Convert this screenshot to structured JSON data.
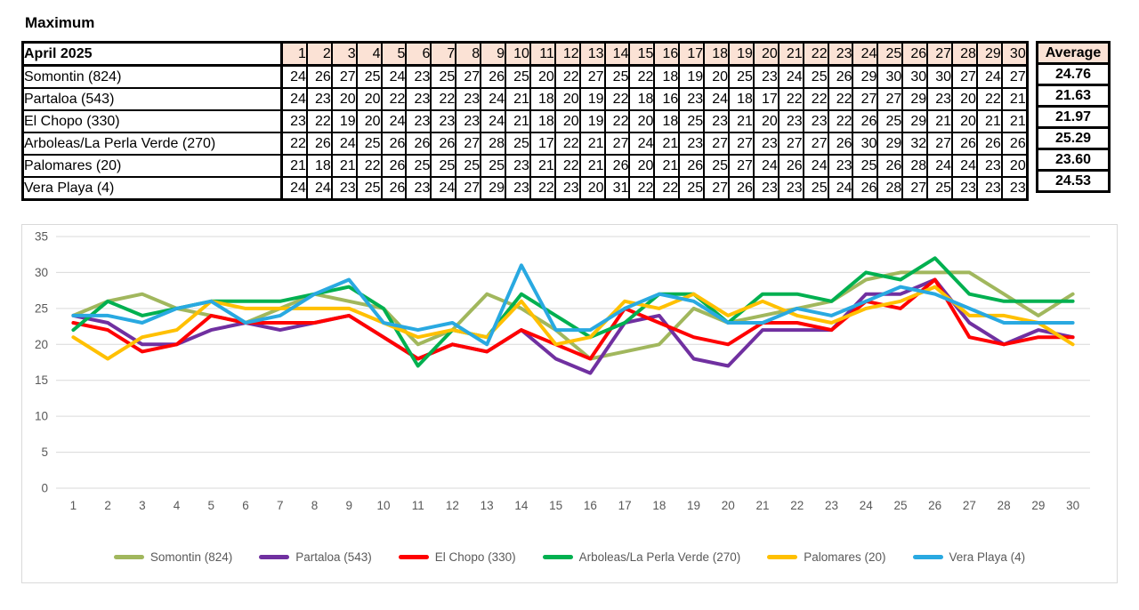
{
  "title": "Maximum",
  "table": {
    "month_label": "April 2025",
    "average_header": "Average",
    "days": [
      1,
      2,
      3,
      4,
      5,
      6,
      7,
      8,
      9,
      10,
      11,
      12,
      13,
      14,
      15,
      16,
      17,
      18,
      19,
      20,
      21,
      22,
      23,
      24,
      25,
      26,
      27,
      28,
      29,
      30
    ],
    "rows": [
      {
        "name": "Somontin (824)",
        "values": [
          24,
          26,
          27,
          25,
          24,
          23,
          25,
          27,
          26,
          25,
          20,
          22,
          27,
          25,
          22,
          18,
          19,
          20,
          25,
          23,
          24,
          25,
          26,
          29,
          30,
          30,
          30,
          27,
          24,
          27
        ],
        "average": "24.76"
      },
      {
        "name": "Partaloa (543)",
        "values": [
          24,
          23,
          20,
          20,
          22,
          23,
          22,
          23,
          24,
          21,
          18,
          20,
          19,
          22,
          18,
          16,
          23,
          24,
          18,
          17,
          22,
          22,
          22,
          27,
          27,
          29,
          23,
          20,
          22,
          21
        ],
        "average": "21.63"
      },
      {
        "name": "El Chopo (330)",
        "values": [
          23,
          22,
          19,
          20,
          24,
          23,
          23,
          23,
          24,
          21,
          18,
          20,
          19,
          22,
          20,
          18,
          25,
          23,
          21,
          20,
          23,
          23,
          22,
          26,
          25,
          29,
          21,
          20,
          21,
          21
        ],
        "average": "21.97"
      },
      {
        "name": "Arboleas/La Perla Verde (270)",
        "values": [
          22,
          26,
          24,
          25,
          26,
          26,
          26,
          27,
          28,
          25,
          17,
          22,
          21,
          27,
          24,
          21,
          23,
          27,
          27,
          23,
          27,
          27,
          26,
          30,
          29,
          32,
          27,
          26,
          26,
          26
        ],
        "average": "25.29"
      },
      {
        "name": "Palomares (20)",
        "values": [
          21,
          18,
          21,
          22,
          26,
          25,
          25,
          25,
          25,
          23,
          21,
          22,
          21,
          26,
          20,
          21,
          26,
          25,
          27,
          24,
          26,
          24,
          23,
          25,
          26,
          28,
          24,
          24,
          23,
          20
        ],
        "average": "23.60"
      },
      {
        "name": "Vera Playa (4)",
        "values": [
          24,
          24,
          23,
          25,
          26,
          23,
          24,
          27,
          29,
          23,
          22,
          23,
          20,
          31,
          22,
          22,
          25,
          27,
          26,
          23,
          23,
          25,
          24,
          26,
          28,
          27,
          25,
          23,
          23,
          23
        ],
        "average": "24.53"
      }
    ]
  },
  "chart_data": {
    "type": "line",
    "x": [
      1,
      2,
      3,
      4,
      5,
      6,
      7,
      8,
      9,
      10,
      11,
      12,
      13,
      14,
      15,
      16,
      17,
      18,
      19,
      20,
      21,
      22,
      23,
      24,
      25,
      26,
      27,
      28,
      29,
      30
    ],
    "series": [
      {
        "name": "Somontin (824)",
        "color": "#A1B75D",
        "values": [
          24,
          26,
          27,
          25,
          24,
          23,
          25,
          27,
          26,
          25,
          20,
          22,
          27,
          25,
          22,
          18,
          19,
          20,
          25,
          23,
          24,
          25,
          26,
          29,
          30,
          30,
          30,
          27,
          24,
          27
        ]
      },
      {
        "name": "Partaloa (543)",
        "color": "#7030A0",
        "values": [
          24,
          23,
          20,
          20,
          22,
          23,
          22,
          23,
          24,
          21,
          18,
          20,
          19,
          22,
          18,
          16,
          23,
          24,
          18,
          17,
          22,
          22,
          22,
          27,
          27,
          29,
          23,
          20,
          22,
          21
        ]
      },
      {
        "name": "El Chopo (330)",
        "color": "#FF0000",
        "values": [
          23,
          22,
          19,
          20,
          24,
          23,
          23,
          23,
          24,
          21,
          18,
          20,
          19,
          22,
          20,
          18,
          25,
          23,
          21,
          20,
          23,
          23,
          22,
          26,
          25,
          29,
          21,
          20,
          21,
          21
        ]
      },
      {
        "name": "Arboleas/La Perla Verde (270)",
        "color": "#00B050",
        "values": [
          22,
          26,
          24,
          25,
          26,
          26,
          26,
          27,
          28,
          25,
          17,
          22,
          21,
          27,
          24,
          21,
          23,
          27,
          27,
          23,
          27,
          27,
          26,
          30,
          29,
          32,
          27,
          26,
          26,
          26
        ]
      },
      {
        "name": "Palomares (20)",
        "color": "#FFC000",
        "values": [
          21,
          18,
          21,
          22,
          26,
          25,
          25,
          25,
          25,
          23,
          21,
          22,
          21,
          26,
          20,
          21,
          26,
          25,
          27,
          24,
          26,
          24,
          23,
          25,
          26,
          28,
          24,
          24,
          23,
          20
        ]
      },
      {
        "name": "Vera Playa (4)",
        "color": "#29A9E1",
        "values": [
          24,
          24,
          23,
          25,
          26,
          23,
          24,
          27,
          29,
          23,
          22,
          23,
          20,
          31,
          22,
          22,
          25,
          27,
          26,
          23,
          23,
          25,
          24,
          26,
          28,
          27,
          25,
          23,
          23,
          23
        ]
      }
    ],
    "ylim": [
      0,
      35
    ],
    "ytick_step": 5,
    "yticks": [
      0,
      5,
      10,
      15,
      20,
      25,
      30,
      35
    ],
    "grid": true,
    "legend_position": "bottom",
    "axis_text_color": "#595959",
    "gridline_color": "#D9D9D9"
  }
}
